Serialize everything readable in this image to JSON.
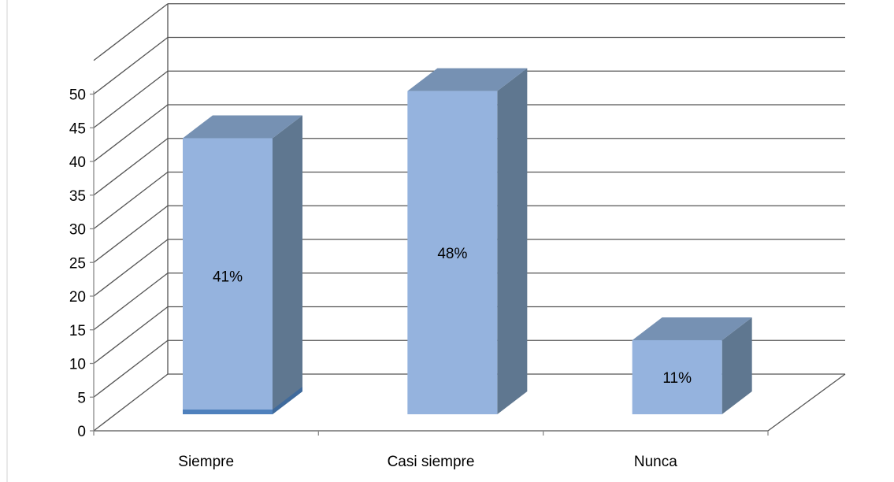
{
  "chart_data": {
    "type": "bar",
    "style": "3d-column",
    "categories": [
      "Siempre",
      "Casi siempre",
      "Nunca"
    ],
    "values": [
      41,
      48,
      11
    ],
    "data_labels": [
      "41%",
      "48%",
      "11%"
    ],
    "y_ticks": [
      "0",
      "5",
      "10",
      "15",
      "20",
      "25",
      "30",
      "35",
      "40",
      "45",
      "50"
    ],
    "ylim": [
      0,
      55
    ],
    "grid": true,
    "legend": "none",
    "colors": {
      "bar_front": "#95b3de",
      "bar_side": "#5f7790",
      "bar_top": "#7691b3",
      "bar_base": "#4f81bd",
      "grid": "#555555",
      "axis": "#8a8a8a"
    }
  }
}
